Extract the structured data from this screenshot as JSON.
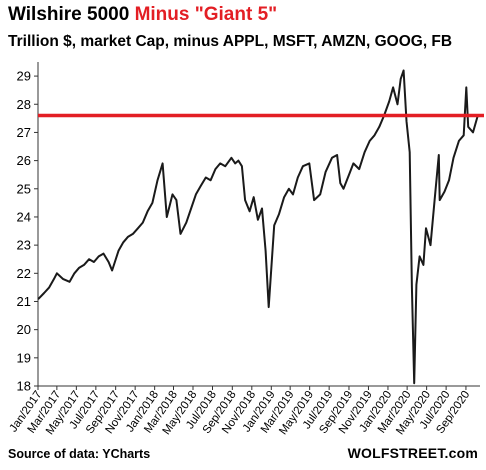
{
  "header": {
    "title_part1": "Wilshire 5000 ",
    "title_part2": "Minus \"Giant 5\"",
    "subtitle": "Trillion $, market Cap, minus APPL, MSFT, AMZN, GOOG, FB"
  },
  "footer": {
    "source": "Source of data: YCharts",
    "brand": "WOLFSTREET.com"
  },
  "colors": {
    "line": "#1a1a1a",
    "reference": "#e31e24",
    "title_accent": "#e31e24",
    "axis": "#333333",
    "background": "#ffffff"
  },
  "chart_data": {
    "type": "line",
    "title": "Wilshire 5000 Minus \"Giant 5\"",
    "subtitle": "Trillion $, market Cap, minus APPL, MSFT, AMZN, GOOG, FB",
    "ylim": [
      18,
      29.5
    ],
    "yticks": [
      "18",
      "19",
      "20",
      "21",
      "22",
      "23",
      "24",
      "25",
      "26",
      "27",
      "28",
      "29"
    ],
    "xlim": [
      "2017-01-01",
      "2020-10-15"
    ],
    "xticks": [
      "Jan/2017",
      "Mar/2017",
      "May/2017",
      "Jul/2017",
      "Sep/2017",
      "Nov/2017",
      "Jan/2018",
      "Mar/2018",
      "May/2018",
      "Jul/2018",
      "Sep/2018",
      "Nov/2018",
      "Jan/2019",
      "Mar/2019",
      "May/2019",
      "Jul/2019",
      "Sep/2019",
      "Nov/2019",
      "Jan/2020",
      "Mar/2020",
      "May/2020",
      "Jul/2020",
      "Sep/2020"
    ],
    "reference_line": {
      "y": 27.6
    },
    "grid": false,
    "series": [
      {
        "x": [
          "2017-01-03",
          "2017-01-20",
          "2017-02-05",
          "2017-02-20",
          "2017-03-01",
          "2017-03-20",
          "2017-04-10",
          "2017-04-25",
          "2017-05-10",
          "2017-05-25",
          "2017-06-10",
          "2017-06-25",
          "2017-07-10",
          "2017-07-25",
          "2017-08-10",
          "2017-08-21",
          "2017-09-10",
          "2017-09-25",
          "2017-10-10",
          "2017-10-25",
          "2017-11-10",
          "2017-11-25",
          "2017-12-10",
          "2017-12-25",
          "2018-01-10",
          "2018-01-26",
          "2018-02-08",
          "2018-02-26",
          "2018-03-10",
          "2018-03-23",
          "2018-04-10",
          "2018-04-25",
          "2018-05-10",
          "2018-05-25",
          "2018-06-10",
          "2018-06-25",
          "2018-07-10",
          "2018-07-25",
          "2018-08-10",
          "2018-08-29",
          "2018-09-10",
          "2018-09-20",
          "2018-10-01",
          "2018-10-11",
          "2018-10-25",
          "2018-11-07",
          "2018-11-20",
          "2018-12-03",
          "2018-12-14",
          "2018-12-24",
          "2019-01-10",
          "2019-01-25",
          "2019-02-10",
          "2019-02-25",
          "2019-03-10",
          "2019-03-25",
          "2019-04-10",
          "2019-04-30",
          "2019-05-15",
          "2019-06-03",
          "2019-06-20",
          "2019-07-10",
          "2019-07-26",
          "2019-08-05",
          "2019-08-15",
          "2019-09-01",
          "2019-09-15",
          "2019-10-03",
          "2019-10-20",
          "2019-11-05",
          "2019-11-20",
          "2019-12-05",
          "2019-12-20",
          "2020-01-05",
          "2020-01-17",
          "2020-01-31",
          "2020-02-10",
          "2020-02-19",
          "2020-02-28",
          "2020-03-09",
          "2020-03-16",
          "2020-03-23",
          "2020-03-30",
          "2020-04-09",
          "2020-04-21",
          "2020-04-29",
          "2020-05-13",
          "2020-05-26",
          "2020-06-08",
          "2020-06-11",
          "2020-06-26",
          "2020-07-10",
          "2020-07-24",
          "2020-08-10",
          "2020-08-25",
          "2020-09-02",
          "2020-09-08",
          "2020-09-23",
          "2020-10-08"
        ],
        "y": [
          21.1,
          21.3,
          21.5,
          21.8,
          22.0,
          21.8,
          21.7,
          22.0,
          22.2,
          22.3,
          22.5,
          22.4,
          22.6,
          22.7,
          22.4,
          22.1,
          22.8,
          23.1,
          23.3,
          23.4,
          23.6,
          23.8,
          24.2,
          24.5,
          25.3,
          25.9,
          24.0,
          24.8,
          24.6,
          23.4,
          23.8,
          24.3,
          24.8,
          25.1,
          25.4,
          25.3,
          25.7,
          25.9,
          25.8,
          26.1,
          25.9,
          26.0,
          25.8,
          24.6,
          24.2,
          24.7,
          23.9,
          24.3,
          22.8,
          20.8,
          23.7,
          24.1,
          24.7,
          25.0,
          24.8,
          25.4,
          25.8,
          25.9,
          24.6,
          24.8,
          25.6,
          26.1,
          26.2,
          25.2,
          25.0,
          25.5,
          25.9,
          25.7,
          26.3,
          26.7,
          26.9,
          27.2,
          27.6,
          28.1,
          28.6,
          28.0,
          28.9,
          29.2,
          27.4,
          26.3,
          21.5,
          18.1,
          21.6,
          22.6,
          22.3,
          23.6,
          23.0,
          24.6,
          26.2,
          24.6,
          24.9,
          25.3,
          26.1,
          26.7,
          26.9,
          28.6,
          27.2,
          27.0,
          27.6
        ]
      }
    ]
  }
}
